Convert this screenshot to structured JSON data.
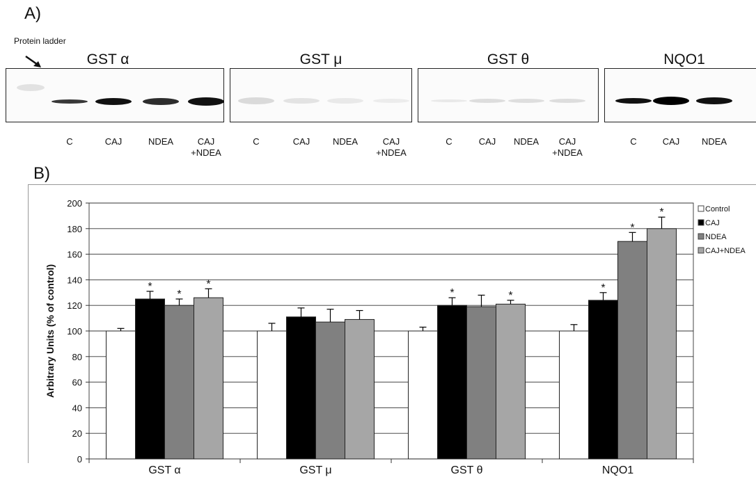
{
  "panel_a_label": "A)",
  "panel_b_label": "B)",
  "ladder_label": "Protein ladder",
  "blots": [
    {
      "title": "GST α",
      "lanes": [
        [
          "C"
        ],
        [
          "CAJ"
        ],
        [
          "NDEA"
        ],
        [
          "CAJ",
          "+NDEA"
        ]
      ]
    },
    {
      "title": "GST μ",
      "lanes": [
        [
          "C"
        ],
        [
          "CAJ"
        ],
        [
          "NDEA"
        ],
        [
          "CAJ",
          "+NDEA"
        ]
      ]
    },
    {
      "title": "GST θ",
      "lanes": [
        [
          "C"
        ],
        [
          "CAJ"
        ],
        [
          "NDEA"
        ],
        [
          "CAJ",
          "+NDEA"
        ]
      ]
    },
    {
      "title": "NQO1",
      "lanes": [
        [
          "C"
        ],
        [
          "CAJ"
        ],
        [
          "NDEA"
        ]
      ]
    }
  ],
  "chart_data": {
    "type": "bar",
    "categories": [
      "GST α",
      "GST μ",
      "GST θ",
      "NQO1"
    ],
    "ylabel": "Arbitrary Units (% of control)",
    "ylim": [
      0,
      200
    ],
    "yticks": [
      0,
      20,
      40,
      60,
      80,
      100,
      120,
      140,
      160,
      180,
      200
    ],
    "grid": true,
    "legend_position": "right",
    "series": [
      {
        "name": "Control",
        "color": "#ffffff",
        "values": [
          100,
          100,
          100,
          100
        ],
        "errors": [
          2,
          6,
          3,
          5
        ],
        "significant": [
          false,
          false,
          false,
          false
        ]
      },
      {
        "name": "CAJ",
        "color": "#000000",
        "values": [
          125,
          111,
          120,
          124
        ],
        "errors": [
          6,
          7,
          6,
          6
        ],
        "significant": [
          true,
          false,
          true,
          true
        ]
      },
      {
        "name": "NDEA",
        "color": "#808080",
        "values": [
          120,
          107,
          119,
          170
        ],
        "errors": [
          5,
          10,
          9,
          7
        ],
        "significant": [
          true,
          false,
          false,
          true
        ]
      },
      {
        "name": "CAJ+NDEA",
        "color": "#a6a6a6",
        "values": [
          126,
          109,
          121,
          180
        ],
        "errors": [
          7,
          7,
          3,
          9
        ],
        "significant": [
          true,
          false,
          true,
          true
        ]
      }
    ],
    "significance_marker": "*"
  }
}
